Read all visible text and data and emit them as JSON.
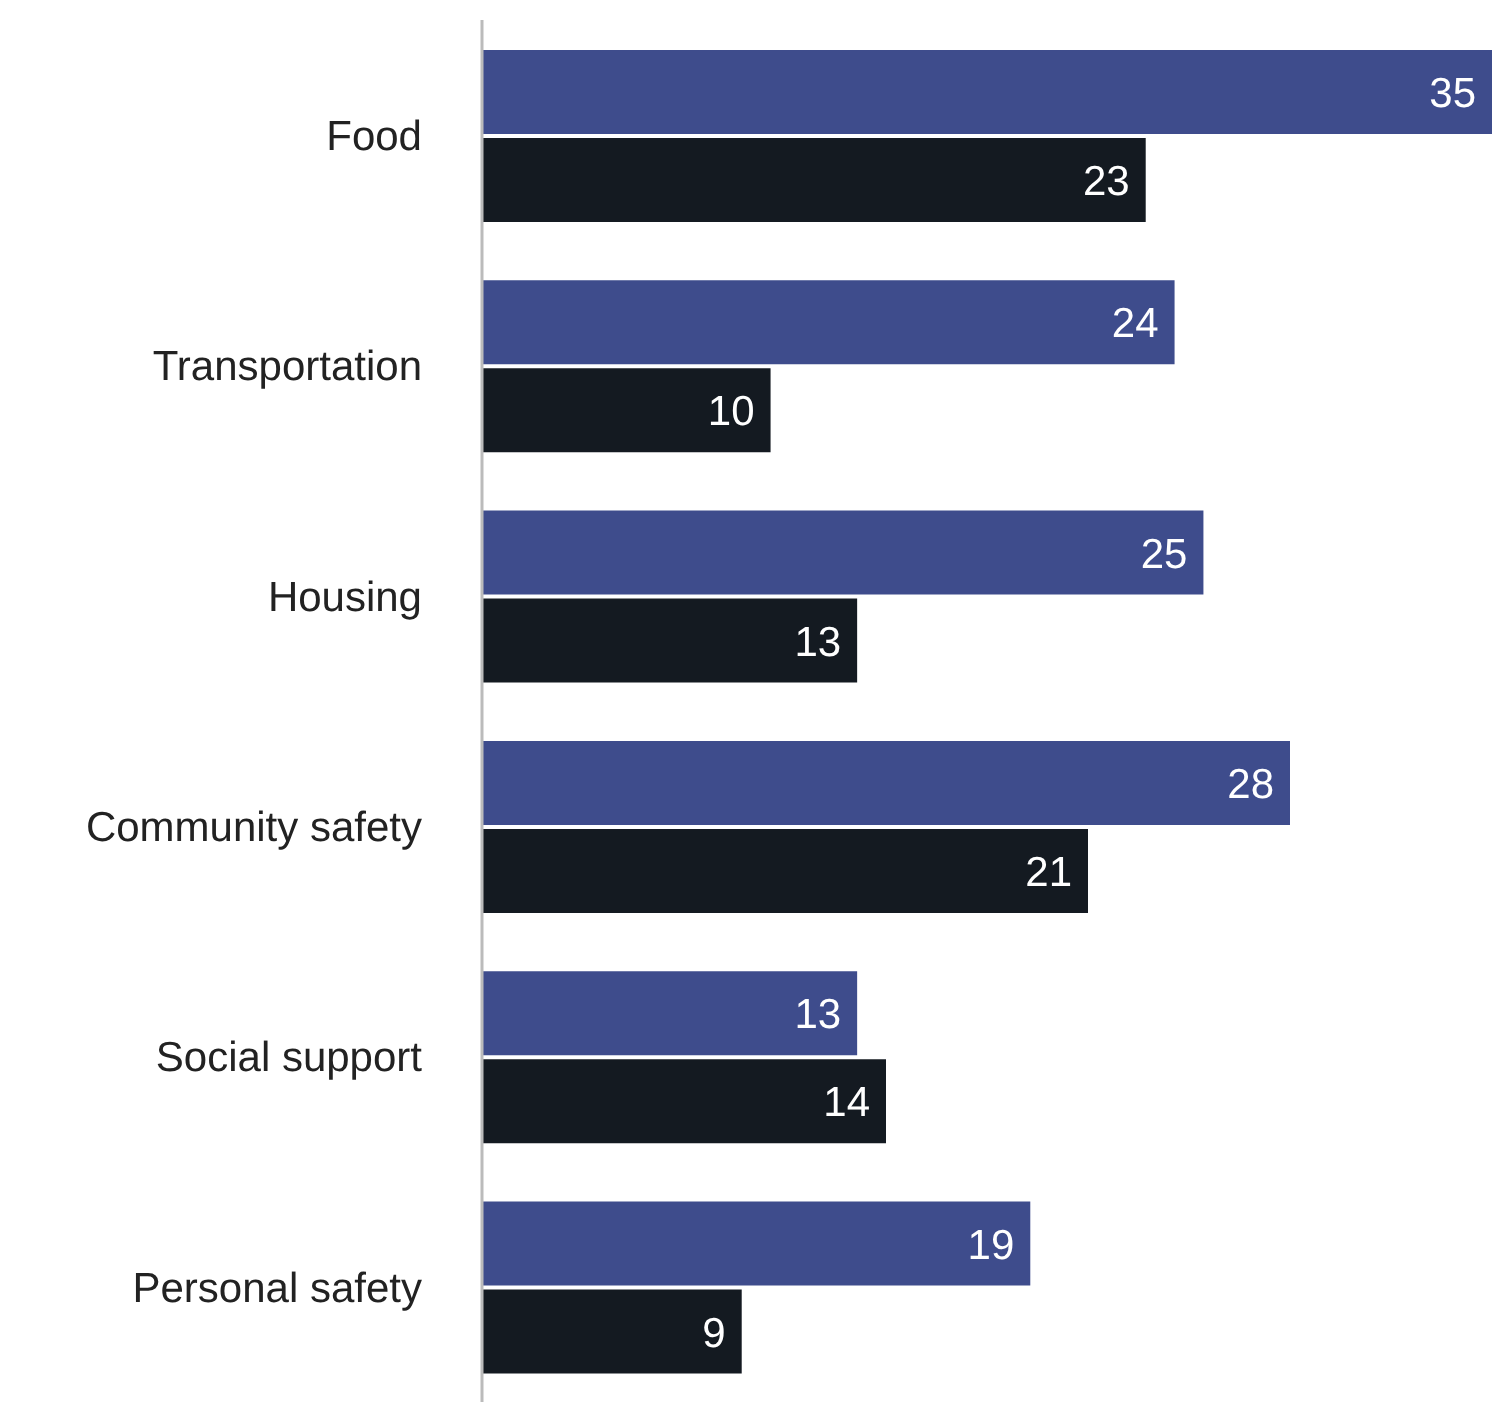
{
  "chart_data": {
    "type": "bar",
    "orientation": "horizontal",
    "categories": [
      "Food",
      "Transportation",
      "Housing",
      "Community safety",
      "Social support",
      "Personal safety"
    ],
    "series": [
      {
        "color": "#3e4c8c",
        "values": [
          35,
          24,
          25,
          28,
          13,
          19
        ]
      },
      {
        "color": "#141a21",
        "values": [
          23,
          10,
          13,
          21,
          14,
          9
        ]
      }
    ],
    "data_labels": true,
    "grid": false,
    "legend": false
  }
}
